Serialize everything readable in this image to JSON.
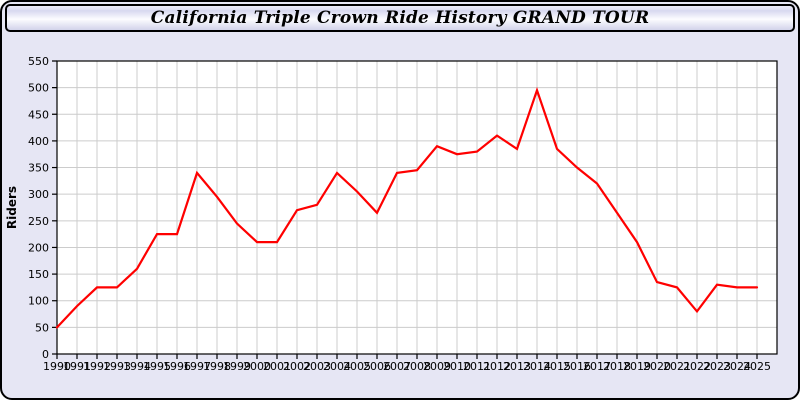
{
  "window": {
    "title": "California Triple Crown Ride History GRAND TOUR"
  },
  "colors": {
    "background": "#e6e6f4",
    "plot_background": "#ffffff",
    "grid": "#cccccc",
    "frame": "#000000",
    "tick_label": "#000000",
    "line": "#ff0000"
  },
  "chart_data": {
    "type": "line",
    "title": "California Triple Crown Ride History GRAND TOUR",
    "xlabel": "",
    "ylabel": "Riders",
    "ylim": [
      0,
      550
    ],
    "ytick_step": 50,
    "grid": true,
    "legend": "none",
    "line_color": "#ff0000",
    "categories": [
      1990,
      1991,
      1992,
      1993,
      1994,
      1995,
      1996,
      1997,
      1998,
      1999,
      2000,
      2001,
      2002,
      2003,
      2004,
      2005,
      2006,
      2007,
      2008,
      2009,
      2010,
      2011,
      2012,
      2013,
      2014,
      2015,
      2016,
      2017,
      2018,
      2019,
      2020,
      2021,
      2022,
      2023,
      2024,
      2025
    ],
    "values": [
      50,
      90,
      125,
      125,
      160,
      225,
      225,
      340,
      295,
      245,
      210,
      210,
      270,
      280,
      340,
      305,
      265,
      340,
      345,
      390,
      375,
      380,
      410,
      385,
      495,
      385,
      350,
      320,
      265,
      210,
      135,
      125,
      80,
      130,
      125,
      125
    ]
  }
}
